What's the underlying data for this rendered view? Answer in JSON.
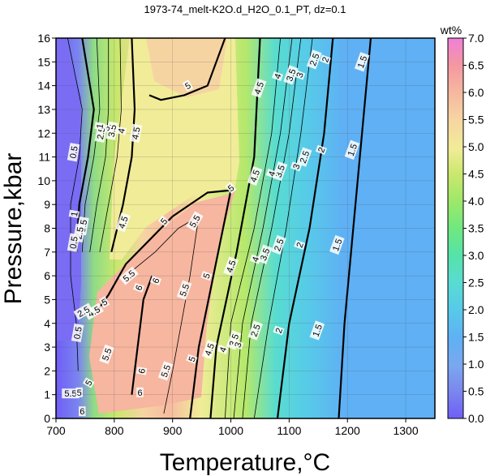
{
  "chart_data": {
    "type": "heatmap",
    "title": "1973-74_melt-K2O.d_H2O_0.1_PT, dz=0.1",
    "xlabel": "Temperature,°C",
    "ylabel": "Pressure,kbar",
    "xlim": [
      700,
      1350
    ],
    "ylim": [
      0,
      16
    ],
    "x_ticks": [
      700,
      800,
      900,
      1000,
      1100,
      1200,
      1300
    ],
    "y_ticks": [
      0,
      1,
      2,
      3,
      4,
      5,
      6,
      7,
      8,
      9,
      10,
      11,
      12,
      13,
      14,
      15,
      16
    ],
    "grid": true,
    "colorbar": {
      "title": "wt%",
      "range": [
        0,
        7
      ],
      "ticks": [
        "0.0",
        "0.5",
        "1.0",
        "1.5",
        "2.0",
        "2.5",
        "3.0",
        "3.5",
        "4.0",
        "4.5",
        "5.0",
        "5.5",
        "6.0",
        "6.5",
        "7.0"
      ],
      "colors": [
        "#6f5ef7",
        "#7b86ee",
        "#7aa8f0",
        "#5fb0f4",
        "#57cbe8",
        "#58dcd0",
        "#56e3a8",
        "#6fe87f",
        "#9de86a",
        "#c9e86c",
        "#f1ec98",
        "#f6d4a2",
        "#f6b6a0",
        "#f497a2",
        "#f07fd8"
      ]
    },
    "contour_levels": [
      1.5,
      2,
      2.5,
      3,
      3.5,
      4,
      4.5,
      5,
      5.5,
      6
    ],
    "contour_labels": [
      {
        "text": "1.5",
        "x": 1225,
        "y": 15.0,
        "angle": -70
      },
      {
        "text": "2",
        "x": 1162,
        "y": 15.1,
        "angle": -70
      },
      {
        "text": "2.5",
        "x": 1143,
        "y": 15.1,
        "angle": -70
      },
      {
        "text": "3",
        "x": 1118,
        "y": 14.45,
        "angle": -70
      },
      {
        "text": "3.5",
        "x": 1103,
        "y": 14.45,
        "angle": -70
      },
      {
        "text": "4",
        "x": 1080,
        "y": 14.4,
        "angle": -70
      },
      {
        "text": "4.5",
        "x": 1048,
        "y": 13.9,
        "angle": -70
      },
      {
        "text": "5",
        "x": 926,
        "y": 14.0,
        "angle": -30
      },
      {
        "text": "4.5",
        "x": 837,
        "y": 12.0,
        "angle": -80
      },
      {
        "text": "4",
        "x": 812,
        "y": 12.1,
        "angle": -80
      },
      {
        "text": "3.5",
        "x": 796,
        "y": 12.1,
        "angle": -80
      },
      {
        "text": "3",
        "x": 786,
        "y": 12.2,
        "angle": -80
      },
      {
        "text": "2.5",
        "x": 777,
        "y": 12.0,
        "angle": -80
      },
      {
        "text": "1",
        "x": 775,
        "y": 12.3,
        "angle": -80
      },
      {
        "text": "0.5",
        "x": 730,
        "y": 11.2,
        "angle": -80
      },
      {
        "text": "1.5",
        "x": 1208,
        "y": 11.3,
        "angle": -70
      },
      {
        "text": "2",
        "x": 1155,
        "y": 11.3,
        "angle": -70
      },
      {
        "text": "2.5",
        "x": 1126,
        "y": 11.0,
        "angle": -70
      },
      {
        "text": "3",
        "x": 1112,
        "y": 10.6,
        "angle": -70
      },
      {
        "text": "3.5",
        "x": 1084,
        "y": 10.4,
        "angle": -70
      },
      {
        "text": "4",
        "x": 1070,
        "y": 10.3,
        "angle": -70
      },
      {
        "text": "4.5",
        "x": 1041,
        "y": 10.2,
        "angle": -70
      },
      {
        "text": "5",
        "x": 1000,
        "y": 9.7,
        "angle": -40
      },
      {
        "text": "4.5",
        "x": 815,
        "y": 8.25,
        "angle": -70
      },
      {
        "text": "5",
        "x": 885,
        "y": 8.3,
        "angle": -50
      },
      {
        "text": "5.5",
        "x": 938,
        "y": 8.3,
        "angle": -60
      },
      {
        "text": "1",
        "x": 731,
        "y": 8.6,
        "angle": -80
      },
      {
        "text": "3.5",
        "x": 746,
        "y": 8.1,
        "angle": -80
      },
      {
        "text": "2.5",
        "x": 740,
        "y": 7.8,
        "angle": -80
      },
      {
        "text": "0.5",
        "x": 730,
        "y": 7.4,
        "angle": -80
      },
      {
        "text": "2",
        "x": 1118,
        "y": 7.3,
        "angle": -70
      },
      {
        "text": "1.5",
        "x": 1182,
        "y": 7.3,
        "angle": -70
      },
      {
        "text": "2.5",
        "x": 1082,
        "y": 7.3,
        "angle": -70
      },
      {
        "text": "3.5",
        "x": 1058,
        "y": 6.9,
        "angle": -70
      },
      {
        "text": "4",
        "x": 1042,
        "y": 6.7,
        "angle": -70
      },
      {
        "text": "4.5",
        "x": 1000,
        "y": 6.4,
        "angle": -70
      },
      {
        "text": "5",
        "x": 958,
        "y": 6.0,
        "angle": -70
      },
      {
        "text": "5.5",
        "x": 825,
        "y": 6.0,
        "angle": -40
      },
      {
        "text": "6",
        "x": 871,
        "y": 5.8,
        "angle": -70
      },
      {
        "text": "6",
        "x": 842,
        "y": 5.5,
        "angle": -70
      },
      {
        "text": "5.5",
        "x": 920,
        "y": 5.4,
        "angle": -70
      },
      {
        "text": "5",
        "x": 783,
        "y": 4.9,
        "angle": -30
      },
      {
        "text": "4.5",
        "x": 765,
        "y": 4.5,
        "angle": -30
      },
      {
        "text": "2.5",
        "x": 747,
        "y": 4.5,
        "angle": -30
      },
      {
        "text": "0.5",
        "x": 737,
        "y": 3.6,
        "angle": -80
      },
      {
        "text": "1.5",
        "x": 1148,
        "y": 3.7,
        "angle": -70
      },
      {
        "text": "2",
        "x": 1082,
        "y": 3.7,
        "angle": -70
      },
      {
        "text": "2.5",
        "x": 1042,
        "y": 3.7,
        "angle": -70
      },
      {
        "text": "3.5",
        "x": 1005,
        "y": 3.3,
        "angle": -70
      },
      {
        "text": "3",
        "x": 1012,
        "y": 3.1,
        "angle": -70
      },
      {
        "text": "4",
        "x": 986,
        "y": 2.9,
        "angle": -70
      },
      {
        "text": "4.5",
        "x": 963,
        "y": 2.9,
        "angle": -70
      },
      {
        "text": "5",
        "x": 933,
        "y": 2.5,
        "angle": -70
      },
      {
        "text": "5.5",
        "x": 787,
        "y": 2.7,
        "angle": -70
      },
      {
        "text": "6",
        "x": 847,
        "y": 2.0,
        "angle": -80
      },
      {
        "text": "5.5",
        "x": 888,
        "y": 2.0,
        "angle": -70
      },
      {
        "text": "5",
        "x": 756,
        "y": 1.5,
        "angle": -60
      },
      {
        "text": "6",
        "x": 844,
        "y": 1.1,
        "angle": 0
      },
      {
        "text": "5.5",
        "x": 725,
        "y": 1.05,
        "angle": 0
      },
      {
        "text": "5",
        "x": 740,
        "y": 1.1,
        "angle": 0
      },
      {
        "text": "6",
        "x": 745,
        "y": 0.3,
        "angle": 0
      }
    ]
  }
}
